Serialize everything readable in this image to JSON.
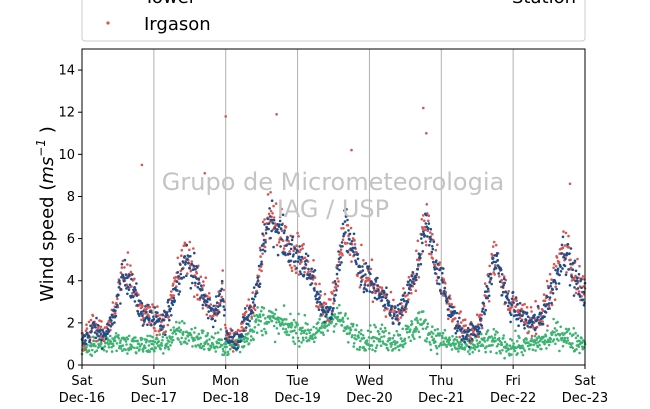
{
  "watermark": {
    "line1": "Grupo de Micrometeorologia",
    "line2": "IAG / USP"
  },
  "legend": {
    "entries": [
      "Tower",
      "Station",
      "Irgason"
    ],
    "placement": "top (partially cropped)"
  },
  "colors": {
    "tower": "#1b4f8a",
    "station": "#3cb371",
    "irgason": "#d9534f",
    "grid": "#b0b0b0"
  },
  "chart_data": {
    "type": "scatter",
    "title": "",
    "xlabel": "",
    "ylabel": "Wind speed (ms⁻¹)",
    "ylabel_parts": {
      "base": "Wind speed (",
      "unit": "ms",
      "exp": "−1",
      "close": ")"
    },
    "ylim": [
      0,
      15
    ],
    "yticks": [
      0,
      2,
      4,
      6,
      8,
      10,
      12,
      14
    ],
    "xlim": [
      "2017-12-16",
      "2017-12-23"
    ],
    "xtick_labels": [
      [
        "Sat",
        "Dec-16"
      ],
      [
        "Sun",
        "Dec-17"
      ],
      [
        "Mon",
        "Dec-18"
      ],
      [
        "Tue",
        "Dec-19"
      ],
      [
        "Wed",
        "Dec-20"
      ],
      [
        "Thu",
        "Dec-21"
      ],
      [
        "Fri",
        "Dec-22"
      ],
      [
        "Sat",
        "Dec-23"
      ]
    ],
    "grid": "vertical lines at day boundaries",
    "series": [
      {
        "name": "Tower",
        "hourly_mean": [
          [
            1.0,
            1.2,
            1.4,
            1.6,
            1.8,
            1.6,
            1.5,
            1.4,
            1.5,
            1.7,
            2.0,
            2.5,
            3.2,
            3.8,
            4.2,
            4.2,
            4.0,
            3.6,
            3.2,
            2.8,
            2.5,
            2.4,
            2.3,
            2.2
          ],
          [
            2.2,
            2.0,
            1.9,
            2.0,
            2.2,
            2.6,
            3.0,
            3.5,
            4.0,
            4.5,
            4.8,
            5.0,
            4.8,
            4.5,
            4.2,
            3.8,
            3.4,
            3.0,
            2.8,
            2.6,
            2.5,
            2.6,
            3.0,
            3.5
          ],
          [
            1.5,
            1.3,
            1.2,
            1.1,
            1.2,
            1.5,
            1.8,
            2.2,
            2.5,
            2.8,
            3.2,
            4.0,
            5.0,
            6.0,
            6.8,
            7.0,
            6.8,
            6.5,
            6.2,
            6.0,
            5.8,
            5.6,
            5.4,
            5.2
          ],
          [
            5.2,
            5.0,
            4.8,
            4.5,
            4.2,
            4.0,
            3.6,
            3.2,
            2.8,
            2.5,
            2.4,
            2.6,
            3.0,
            3.8,
            5.0,
            6.0,
            6.5,
            6.2,
            5.8,
            5.2,
            4.8,
            4.4,
            4.2,
            4.0
          ],
          [
            4.0,
            3.8,
            3.6,
            3.4,
            3.2,
            3.0,
            2.8,
            2.6,
            2.4,
            2.3,
            2.4,
            2.6,
            3.0,
            3.4,
            3.8,
            4.2,
            4.5,
            5.0,
            6.0,
            6.5,
            6.0,
            5.5,
            5.0,
            4.5
          ],
          [
            4.0,
            3.5,
            3.0,
            2.6,
            2.3,
            2.0,
            1.8,
            1.6,
            1.5,
            1.4,
            1.5,
            1.6,
            1.8,
            2.0,
            2.5,
            3.2,
            3.8,
            4.5,
            5.0,
            4.8,
            4.2,
            3.6,
            3.0,
            2.8
          ],
          [
            2.8,
            2.5,
            2.4,
            2.3,
            2.2,
            2.1,
            2.0,
            2.0,
            2.1,
            2.2,
            2.4,
            2.8,
            3.2,
            3.6,
            4.0,
            4.5,
            5.0,
            5.5,
            5.2,
            4.8,
            4.4,
            4.0,
            3.6,
            3.4
          ]
        ]
      },
      {
        "name": "Station",
        "hourly_mean": [
          [
            0.8,
            0.8,
            0.9,
            0.9,
            1.0,
            1.0,
            1.0,
            1.1,
            1.1,
            1.2,
            1.2,
            1.2,
            1.2,
            1.1,
            1.1,
            1.0,
            1.0,
            1.0,
            0.9,
            0.9,
            0.9,
            0.9,
            1.0,
            1.0
          ],
          [
            1.0,
            1.0,
            1.0,
            1.1,
            1.1,
            1.2,
            1.3,
            1.4,
            1.5,
            1.5,
            1.5,
            1.4,
            1.4,
            1.3,
            1.3,
            1.2,
            1.2,
            1.1,
            1.1,
            1.0,
            1.0,
            1.0,
            1.0,
            1.0
          ],
          [
            0.9,
            0.9,
            0.9,
            1.0,
            1.0,
            1.1,
            1.2,
            1.4,
            1.6,
            1.8,
            2.0,
            2.1,
            2.2,
            2.2,
            2.2,
            2.1,
            2.0,
            2.0,
            1.9,
            1.9,
            1.8,
            1.8,
            1.8,
            1.7
          ],
          [
            1.7,
            1.7,
            1.6,
            1.6,
            1.5,
            1.5,
            1.5,
            1.6,
            1.7,
            1.8,
            2.0,
            2.2,
            2.4,
            2.4,
            2.2,
            2.0,
            1.8,
            1.6,
            1.5,
            1.4,
            1.4,
            1.3,
            1.3,
            1.3
          ],
          [
            1.3,
            1.3,
            1.3,
            1.3,
            1.3,
            1.3,
            1.2,
            1.2,
            1.2,
            1.2,
            1.2,
            1.3,
            1.4,
            1.5,
            1.6,
            1.8,
            2.0,
            2.0,
            1.9,
            1.7,
            1.5,
            1.4,
            1.3,
            1.2
          ],
          [
            1.2,
            1.1,
            1.1,
            1.0,
            1.0,
            1.0,
            0.9,
            0.9,
            0.9,
            0.9,
            0.9,
            1.0,
            1.0,
            1.0,
            1.1,
            1.1,
            1.1,
            1.1,
            1.1,
            1.0,
            1.0,
            1.0,
            0.9,
            0.9
          ],
          [
            0.9,
            0.9,
            0.9,
            0.9,
            0.9,
            1.0,
            1.0,
            1.0,
            1.1,
            1.1,
            1.1,
            1.2,
            1.2,
            1.3,
            1.4,
            1.5,
            1.5,
            1.4,
            1.3,
            1.2,
            1.2,
            1.1,
            1.1,
            1.1
          ]
        ]
      },
      {
        "name": "Irgason",
        "hourly_mean": [
          [
            1.1,
            1.3,
            1.5,
            1.7,
            1.9,
            1.7,
            1.6,
            1.5,
            1.6,
            1.8,
            2.1,
            2.7,
            3.4,
            4.0,
            4.4,
            4.4,
            4.1,
            3.7,
            3.3,
            2.9,
            2.6,
            2.5,
            2.4,
            2.3
          ],
          [
            2.3,
            2.1,
            2.0,
            2.1,
            2.3,
            2.7,
            3.2,
            3.7,
            4.2,
            4.7,
            5.0,
            5.2,
            5.0,
            4.6,
            4.3,
            3.9,
            3.5,
            3.1,
            2.9,
            2.7,
            2.6,
            2.7,
            3.2,
            3.8
          ],
          [
            1.6,
            1.4,
            1.3,
            1.2,
            1.3,
            1.6,
            1.9,
            2.3,
            2.6,
            2.9,
            3.3,
            4.2,
            5.3,
            6.4,
            7.2,
            7.4,
            7.1,
            6.7,
            6.4,
            6.2,
            6.0,
            5.8,
            5.5,
            5.3
          ],
          [
            5.3,
            5.1,
            4.9,
            4.6,
            4.3,
            4.1,
            3.7,
            3.3,
            2.9,
            2.6,
            2.5,
            2.7,
            3.1,
            3.9,
            5.2,
            6.2,
            6.7,
            6.4,
            5.9,
            5.3,
            4.9,
            4.5,
            4.3,
            4.1
          ],
          [
            4.1,
            3.9,
            3.7,
            3.5,
            3.3,
            3.1,
            2.9,
            2.7,
            2.5,
            2.4,
            2.5,
            2.7,
            3.1,
            3.5,
            3.9,
            4.4,
            4.8,
            5.4,
            6.4,
            6.9,
            6.3,
            5.7,
            5.2,
            4.6
          ],
          [
            4.1,
            3.6,
            3.1,
            2.7,
            2.4,
            2.1,
            1.9,
            1.7,
            1.6,
            1.5,
            1.6,
            1.7,
            1.9,
            2.1,
            2.6,
            3.3,
            4.0,
            4.7,
            5.2,
            5.0,
            4.3,
            3.7,
            3.1,
            2.9
          ],
          [
            2.9,
            2.6,
            2.5,
            2.4,
            2.3,
            2.2,
            2.1,
            2.1,
            2.2,
            2.3,
            2.5,
            2.9,
            3.3,
            3.8,
            4.2,
            4.7,
            5.2,
            5.7,
            5.4,
            5.0,
            4.6,
            4.2,
            3.8,
            3.6
          ]
        ],
        "peaks": [
          [
            "2017-12-16 20:00",
            9.5
          ],
          [
            "2017-12-17 17:00",
            9.1
          ],
          [
            "2017-12-18 00:00",
            11.8
          ],
          [
            "2017-12-18 17:00",
            11.9
          ],
          [
            "2017-12-19 18:00",
            10.2
          ],
          [
            "2017-12-20 18:00",
            12.2
          ],
          [
            "2017-12-20 19:00",
            11.0
          ],
          [
            "2017-12-22 19:00",
            8.6
          ]
        ]
      }
    ]
  }
}
